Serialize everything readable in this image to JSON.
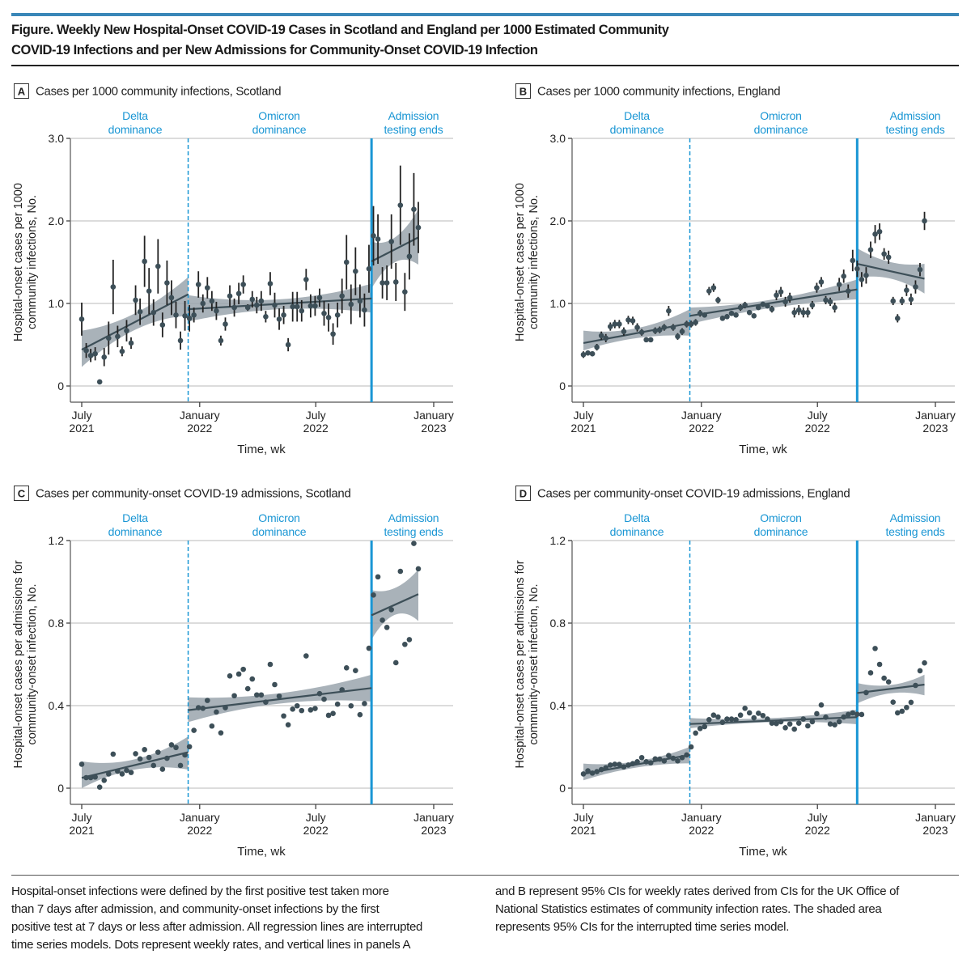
{
  "figure": {
    "title_lines": [
      "Figure. Weekly New Hospital-Onset COVID-19 Cases in Scotland and England per 1000 Estimated Community",
      "COVID-19 Infections and per New Admissions for Community-Onset COVID-19 Infection"
    ],
    "footnote_left": [
      "Hospital-onset infections were defined by the first positive test taken more",
      "than 7 days after admission, and community-onset infections by the first",
      "positive test at 7 days or less after admission. All regression lines are interrupted",
      "time series models. Dots represent weekly rates, and vertical lines in panels A"
    ],
    "footnote_right": [
      "and B represent 95% CIs for weekly rates derived from CIs for the UK Office of",
      "National Statistics estimates of community infection rates. The shaded area",
      "represents 95% CIs for the interrupted time series model."
    ]
  },
  "colors": {
    "accent_blue": "#1a96d4",
    "top_bar": "#3a87b8",
    "points": "#3d4f58",
    "band": "#9aa5ad",
    "grid": "#dcdcdc"
  },
  "weeks": [
    "2021-07-01",
    "2021-07-08",
    "2021-07-15",
    "2021-07-22",
    "2021-07-29",
    "2021-08-05",
    "2021-08-12",
    "2021-08-19",
    "2021-08-26",
    "2021-09-02",
    "2021-09-09",
    "2021-09-16",
    "2021-09-23",
    "2021-09-30",
    "2021-10-07",
    "2021-10-14",
    "2021-10-21",
    "2021-10-28",
    "2021-11-04",
    "2021-11-11",
    "2021-11-18",
    "2021-11-25",
    "2021-12-02",
    "2021-12-09",
    "2021-12-16",
    "2021-12-23",
    "2021-12-30",
    "2022-01-06",
    "2022-01-13",
    "2022-01-20",
    "2022-01-27",
    "2022-02-03",
    "2022-02-10",
    "2022-02-17",
    "2022-02-24",
    "2022-03-03",
    "2022-03-10",
    "2022-03-17",
    "2022-03-24",
    "2022-03-31",
    "2022-04-07",
    "2022-04-14",
    "2022-04-21",
    "2022-04-28",
    "2022-05-05",
    "2022-05-12",
    "2022-05-19",
    "2022-05-26",
    "2022-06-02",
    "2022-06-09",
    "2022-06-16",
    "2022-06-23",
    "2022-06-30",
    "2022-07-07",
    "2022-07-14",
    "2022-07-21",
    "2022-07-28",
    "2022-08-04",
    "2022-08-11",
    "2022-08-18",
    "2022-08-25",
    "2022-09-01",
    "2022-09-08",
    "2022-09-15",
    "2022-09-22",
    "2022-09-29",
    "2022-10-06",
    "2022-10-13",
    "2022-10-20",
    "2022-10-27",
    "2022-11-03",
    "2022-11-10",
    "2022-11-17",
    "2022-11-24",
    "2022-12-01",
    "2022-12-08",
    "2022-12-15"
  ],
  "chart_data": [
    {
      "panel": "A",
      "type": "scatter",
      "title": "Cases per 1000 community infections, Scotland",
      "xlabel": "Time, wk",
      "ylabel": [
        "Hospital-onset cases per 1000",
        "community infections, No."
      ],
      "ylim": [
        0,
        3
      ],
      "yticks": [
        {
          "value": 0,
          "label": "0"
        },
        {
          "value": 1,
          "label": "1.0"
        },
        {
          "value": 2,
          "label": "2.0"
        },
        {
          "value": 3,
          "label": "3.0"
        }
      ],
      "xticks": [
        {
          "date": "2021-07-01",
          "label": [
            "July",
            "2021"
          ]
        },
        {
          "date": "2022-01-01",
          "label": [
            "January",
            "2022"
          ]
        },
        {
          "date": "2022-07-01",
          "label": [
            "July",
            "2022"
          ]
        },
        {
          "date": "2023-01-01",
          "label": [
            "January",
            "2023"
          ]
        }
      ],
      "grid": true,
      "annotations": [
        [
          "Delta",
          "dominance"
        ],
        [
          "Omicron",
          "dominance"
        ],
        [
          "Admission",
          "testing ends"
        ]
      ],
      "phase_lines": [
        {
          "date": "2021-12-14",
          "style": "dashed"
        },
        {
          "date": "2022-09-26",
          "style": "solid"
        }
      ],
      "y": [
        0.81,
        0.43,
        0.37,
        0.39,
        0.05,
        0.35,
        0.58,
        1.2,
        0.6,
        0.42,
        0.67,
        0.52,
        1.04,
        0.9,
        1.51,
        1.15,
        0.89,
        1.45,
        0.74,
        1.25,
        1.07,
        0.86,
        0.55,
        0.85,
        0.82,
        0.86,
        1.23,
        1.0,
        1.19,
        1.03,
        0.91,
        0.55,
        0.75,
        1.09,
        0.95,
        1.12,
        1.23,
        0.95,
        1.05,
        0.98,
        1.03,
        0.84,
        1.24,
        0.98,
        0.81,
        0.86,
        0.5,
        0.96,
        0.96,
        0.91,
        1.29,
        0.97,
        0.97,
        1.07,
        0.88,
        0.83,
        0.63,
        0.86,
        1.09,
        1.5,
        0.99,
        1.39,
        1.03,
        0.92,
        1.42,
        1.82,
        1.78,
        1.25,
        1.25,
        1.75,
        1.26,
        2.19,
        1.14,
        1.57,
        2.14,
        1.92
      ],
      "ci_halfwidth": [
        0.2,
        0.09,
        0.08,
        0.08,
        0.02,
        0.11,
        0.2,
        0.33,
        0.13,
        0.06,
        0.13,
        0.07,
        0.18,
        0.16,
        0.31,
        0.28,
        0.16,
        0.33,
        0.15,
        0.27,
        0.21,
        0.16,
        0.11,
        0.18,
        0.16,
        0.09,
        0.16,
        0.11,
        0.13,
        0.12,
        0.11,
        0.06,
        0.08,
        0.13,
        0.11,
        0.13,
        0.11,
        0.04,
        0.1,
        0.1,
        0.12,
        0.07,
        0.14,
        0.15,
        0.13,
        0.11,
        0.08,
        0.18,
        0.18,
        0.13,
        0.13,
        0.14,
        0.12,
        0.11,
        0.15,
        0.17,
        0.13,
        0.15,
        0.21,
        0.33,
        0.24,
        0.29,
        0.2,
        0.2,
        0.29,
        0.36,
        0.3,
        0.19,
        0.21,
        0.33,
        0.23,
        0.48,
        0.23,
        0.28,
        0.44,
        0.31
      ],
      "regression": [
        {
          "from": "2021-07-01",
          "to": "2021-12-14",
          "y_start": 0.44,
          "y_end": 1.11,
          "band_start": [
            0.23,
            0.67
          ],
          "band_mid": [
            0.68,
            0.88
          ],
          "band_end": [
            0.85,
            1.32
          ]
        },
        {
          "from": "2021-12-14",
          "to": "2022-09-26",
          "y_start": 0.93,
          "y_end": 1.06,
          "band_start": [
            0.78,
            1.1
          ],
          "band_mid": [
            0.93,
            1.05
          ],
          "band_end": [
            0.89,
            1.24
          ]
        },
        {
          "from": "2022-09-26",
          "to": "2022-12-08",
          "y_start": 1.51,
          "y_end": 1.8,
          "band_start": [
            1.18,
            1.75
          ],
          "band_mid": [
            1.5,
            1.8
          ],
          "band_end": [
            1.47,
            2.14
          ]
        }
      ]
    },
    {
      "panel": "B",
      "type": "scatter",
      "title": "Cases per 1000 community infections, England",
      "xlabel": "Time, wk",
      "ylabel": [
        "Hospital-onset cases per 1000",
        "community infections, No."
      ],
      "ylim": [
        0,
        3
      ],
      "yticks": [
        {
          "value": 0,
          "label": "0"
        },
        {
          "value": 1,
          "label": "1.0"
        },
        {
          "value": 2,
          "label": "2.0"
        },
        {
          "value": 3,
          "label": "3.0"
        }
      ],
      "xticks": [
        {
          "date": "2021-07-01",
          "label": [
            "July",
            "2021"
          ]
        },
        {
          "date": "2022-01-01",
          "label": [
            "January",
            "2022"
          ]
        },
        {
          "date": "2022-07-01",
          "label": [
            "July",
            "2022"
          ]
        },
        {
          "date": "2023-01-01",
          "label": [
            "January",
            "2023"
          ]
        }
      ],
      "grid": true,
      "annotations": [
        [
          "Delta",
          "dominance"
        ],
        [
          "Omicron",
          "dominance"
        ],
        [
          "Admission",
          "testing ends"
        ]
      ],
      "phase_lines": [
        {
          "date": "2021-12-14",
          "style": "dashed"
        },
        {
          "date": "2022-09-01",
          "style": "solid"
        }
      ],
      "y": [
        0.38,
        0.4,
        0.39,
        0.47,
        0.61,
        0.58,
        0.72,
        0.75,
        0.75,
        0.66,
        0.8,
        0.79,
        0.71,
        0.65,
        0.56,
        0.56,
        0.67,
        0.68,
        0.71,
        0.91,
        0.71,
        0.6,
        0.66,
        0.75,
        0.75,
        0.77,
        0.88,
        0.86,
        1.15,
        1.19,
        1.04,
        0.82,
        0.84,
        0.88,
        0.86,
        0.95,
        0.98,
        0.89,
        0.85,
        0.95,
        0.99,
        0.97,
        0.93,
        1.1,
        1.14,
        1.02,
        1.07,
        0.89,
        0.92,
        0.89,
        0.89,
        0.98,
        1.19,
        1.26,
        1.04,
        1.02,
        0.95,
        1.23,
        1.33,
        1.15,
        1.52,
        1.42,
        1.29,
        1.34,
        1.65,
        1.84,
        1.87,
        1.6,
        1.56,
        1.03,
        0.82,
        1.03,
        1.16,
        1.05,
        1.2,
        1.41,
        2.0
      ],
      "ci_halfwidth": [
        0.04,
        0.03,
        0.03,
        0.04,
        0.05,
        0.05,
        0.05,
        0.05,
        0.05,
        0.05,
        0.05,
        0.05,
        0.05,
        0.04,
        0.03,
        0.03,
        0.04,
        0.04,
        0.04,
        0.06,
        0.04,
        0.04,
        0.04,
        0.04,
        0.04,
        0.04,
        0.04,
        0.03,
        0.05,
        0.05,
        0.04,
        0.03,
        0.03,
        0.03,
        0.03,
        0.04,
        0.04,
        0.03,
        0.03,
        0.03,
        0.03,
        0.03,
        0.04,
        0.06,
        0.06,
        0.06,
        0.06,
        0.06,
        0.06,
        0.06,
        0.06,
        0.05,
        0.06,
        0.06,
        0.05,
        0.05,
        0.06,
        0.08,
        0.08,
        0.08,
        0.13,
        0.1,
        0.09,
        0.1,
        0.1,
        0.11,
        0.1,
        0.07,
        0.08,
        0.05,
        0.05,
        0.05,
        0.07,
        0.07,
        0.08,
        0.08,
        0.11
      ],
      "regression": [
        {
          "from": "2021-07-01",
          "to": "2021-12-14",
          "y_start": 0.52,
          "y_end": 0.76,
          "band_start": [
            0.43,
            0.67
          ],
          "band_mid": [
            0.58,
            0.7
          ],
          "band_end": [
            0.61,
            0.93
          ]
        },
        {
          "from": "2021-12-14",
          "to": "2022-09-01",
          "y_start": 0.85,
          "y_end": 1.17,
          "band_start": [
            0.75,
            0.95
          ],
          "band_mid": [
            0.95,
            1.05
          ],
          "band_end": [
            1.05,
            1.29
          ]
        },
        {
          "from": "2022-09-01",
          "to": "2022-12-15",
          "y_start": 1.48,
          "y_end": 1.3,
          "band_start": [
            1.31,
            1.67
          ],
          "band_mid": [
            1.3,
            1.5
          ],
          "band_end": [
            1.12,
            1.48
          ]
        }
      ]
    },
    {
      "panel": "C",
      "type": "scatter",
      "title": "Cases per community-onset COVID-19 admissions, Scotland",
      "xlabel": "Time, wk",
      "ylabel": [
        "Hospital-onset cases per admissions for",
        "community-onset infection, No."
      ],
      "ylim": [
        0,
        1.2
      ],
      "yticks": [
        {
          "value": 0,
          "label": "0"
        },
        {
          "value": 0.4,
          "label": "0.4"
        },
        {
          "value": 0.8,
          "label": "0.8"
        },
        {
          "value": 1.2,
          "label": "1.2"
        }
      ],
      "xticks": [
        {
          "date": "2021-07-01",
          "label": [
            "July",
            "2021"
          ]
        },
        {
          "date": "2022-01-01",
          "label": [
            "January",
            "2022"
          ]
        },
        {
          "date": "2022-07-01",
          "label": [
            "July",
            "2022"
          ]
        },
        {
          "date": "2023-01-01",
          "label": [
            "January",
            "2023"
          ]
        }
      ],
      "grid": true,
      "annotations": [
        [
          "Delta",
          "dominance"
        ],
        [
          "Omicron",
          "dominance"
        ],
        [
          "Admission",
          "testing ends"
        ]
      ],
      "phase_lines": [
        {
          "date": "2021-12-14",
          "style": "dashed"
        },
        {
          "date": "2022-09-26",
          "style": "solid"
        }
      ],
      "y": [
        0.116,
        0.051,
        0.051,
        0.054,
        0.005,
        0.038,
        0.069,
        0.165,
        0.082,
        0.069,
        0.086,
        0.076,
        0.167,
        0.142,
        0.187,
        0.149,
        0.11,
        0.174,
        0.092,
        0.145,
        0.21,
        0.197,
        0.11,
        0.161,
        0.201,
        0.28,
        0.39,
        0.387,
        0.425,
        0.301,
        0.369,
        0.268,
        0.39,
        0.544,
        0.448,
        0.553,
        0.576,
        0.482,
        0.529,
        0.452,
        0.452,
        0.417,
        0.6,
        0.502,
        0.446,
        0.35,
        0.307,
        0.383,
        0.399,
        0.376,
        0.641,
        0.379,
        0.386,
        0.458,
        0.431,
        0.353,
        0.362,
        0.407,
        0.477,
        0.583,
        0.399,
        0.57,
        0.356,
        0.41,
        0.678,
        0.936,
        1.024,
        0.814,
        0.779,
        0.865,
        0.608,
        1.051,
        0.697,
        0.72,
        1.186,
        1.063
      ],
      "regression": [
        {
          "from": "2021-07-01",
          "to": "2021-12-14",
          "y_start": 0.05,
          "y_end": 0.174,
          "band_start": [
            0.0,
            0.13
          ],
          "band_mid": [
            0.09,
            0.14
          ],
          "band_end": [
            0.09,
            0.25
          ]
        },
        {
          "from": "2021-12-14",
          "to": "2022-09-26",
          "y_start": 0.378,
          "y_end": 0.485,
          "band_start": [
            0.32,
            0.44
          ],
          "band_mid": [
            0.41,
            0.46
          ],
          "band_end": [
            0.42,
            0.55
          ]
        },
        {
          "from": "2022-09-26",
          "to": "2022-12-08",
          "y_start": 0.838,
          "y_end": 0.94,
          "band_start": [
            0.72,
            0.96
          ],
          "band_mid": [
            0.84,
            0.97
          ],
          "band_end": [
            0.81,
            1.06
          ]
        }
      ]
    },
    {
      "panel": "D",
      "type": "scatter",
      "title": "Cases per community-onset COVID-19 admissions, England",
      "xlabel": "Time, wk",
      "ylabel": [
        "Hospital-onset cases per admissions for",
        "community-onset infection, No."
      ],
      "ylim": [
        0,
        1.2
      ],
      "yticks": [
        {
          "value": 0,
          "label": "0"
        },
        {
          "value": 0.4,
          "label": "0.4"
        },
        {
          "value": 0.8,
          "label": "0.8"
        },
        {
          "value": 1.2,
          "label": "1.2"
        }
      ],
      "xticks": [
        {
          "date": "2021-07-01",
          "label": [
            "July",
            "2021"
          ]
        },
        {
          "date": "2022-01-01",
          "label": [
            "January",
            "2022"
          ]
        },
        {
          "date": "2022-07-01",
          "label": [
            "July",
            "2022"
          ]
        },
        {
          "date": "2023-01-01",
          "label": [
            "January",
            "2023"
          ]
        }
      ],
      "grid": true,
      "annotations": [
        [
          "Delta",
          "dominance"
        ],
        [
          "Omicron",
          "dominance"
        ],
        [
          "Admission",
          "testing ends"
        ]
      ],
      "phase_lines": [
        {
          "date": "2021-12-14",
          "style": "dashed"
        },
        {
          "date": "2022-09-01",
          "style": "solid"
        }
      ],
      "y": [
        0.069,
        0.084,
        0.073,
        0.08,
        0.09,
        0.099,
        0.112,
        0.116,
        0.115,
        0.103,
        0.112,
        0.119,
        0.128,
        0.148,
        0.128,
        0.123,
        0.142,
        0.141,
        0.132,
        0.158,
        0.145,
        0.132,
        0.148,
        0.161,
        0.2,
        0.267,
        0.289,
        0.298,
        0.332,
        0.354,
        0.345,
        0.319,
        0.335,
        0.335,
        0.332,
        0.354,
        0.387,
        0.365,
        0.341,
        0.363,
        0.352,
        0.335,
        0.315,
        0.313,
        0.322,
        0.293,
        0.311,
        0.286,
        0.315,
        0.335,
        0.302,
        0.322,
        0.361,
        0.403,
        0.344,
        0.311,
        0.307,
        0.322,
        0.345,
        0.357,
        0.365,
        0.358,
        0.357,
        0.463,
        0.559,
        0.677,
        0.6,
        0.533,
        0.515,
        0.417,
        0.365,
        0.373,
        0.391,
        0.416,
        0.498,
        0.569,
        0.607
      ],
      "regression": [
        {
          "from": "2021-07-01",
          "to": "2021-12-14",
          "y_start": 0.069,
          "y_end": 0.161,
          "band_start": [
            0.038,
            0.119
          ],
          "band_mid": [
            0.1,
            0.13
          ],
          "band_end": [
            0.12,
            0.2
          ]
        },
        {
          "from": "2021-12-14",
          "to": "2022-09-01",
          "y_start": 0.311,
          "y_end": 0.344,
          "band_start": [
            0.29,
            0.34
          ],
          "band_mid": [
            0.32,
            0.34
          ],
          "band_end": [
            0.31,
            0.38
          ]
        },
        {
          "from": "2022-09-01",
          "to": "2022-12-15",
          "y_start": 0.461,
          "y_end": 0.502,
          "band_start": [
            0.41,
            0.51
          ],
          "band_mid": [
            0.46,
            0.5
          ],
          "band_end": [
            0.45,
            0.55
          ]
        }
      ]
    }
  ]
}
